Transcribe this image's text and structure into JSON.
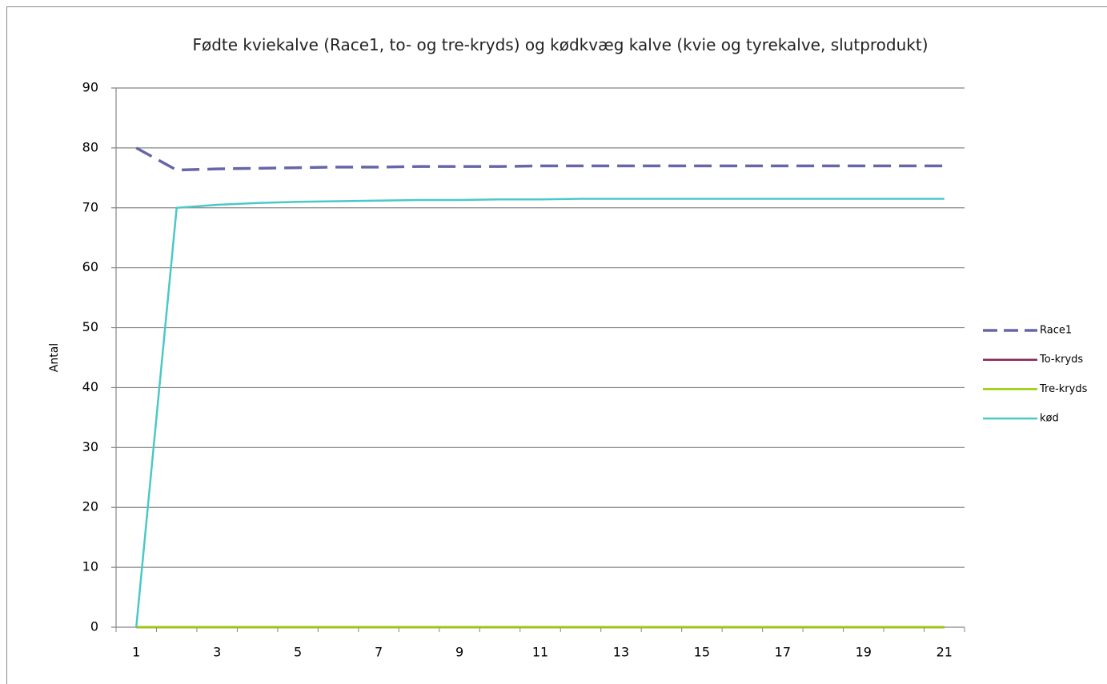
{
  "chart_data": {
    "type": "line",
    "title": "Fødte kviekalve (Race1, to- og tre-kryds) og kødkvæg kalve (kvie og tyrekalve, slutprodukt)",
    "y_label": "Antal",
    "categories": [
      1,
      null,
      3,
      null,
      5,
      null,
      7,
      null,
      9,
      null,
      11,
      null,
      13,
      null,
      15,
      null,
      17,
      null,
      19,
      null,
      21
    ],
    "series": [
      {
        "name": "Race1",
        "color": "#6666a8",
        "dashed": true,
        "values": [
          80,
          76.3,
          76.5,
          76.6,
          76.7,
          76.8,
          76.8,
          76.9,
          76.9,
          76.9,
          77,
          77,
          77,
          77,
          77,
          77,
          77,
          77,
          77,
          77,
          77
        ]
      },
      {
        "name": "To-kryds",
        "color": "#8b2252",
        "dashed": false,
        "values": [
          0,
          0,
          0,
          0,
          0,
          0,
          0,
          0,
          0,
          0,
          0,
          0,
          0,
          0,
          0,
          0,
          0,
          0,
          0,
          0,
          0
        ]
      },
      {
        "name": "Tre-kryds",
        "color": "#99cc00",
        "dashed": false,
        "values": [
          0,
          0,
          0,
          0,
          0,
          0,
          0,
          0,
          0,
          0,
          0,
          0,
          0,
          0,
          0,
          0,
          0,
          0,
          0,
          0,
          0
        ]
      },
      {
        "name": "kød",
        "color": "#4bc8c8",
        "dashed": false,
        "values": [
          0,
          70,
          70.5,
          70.8,
          71,
          71.1,
          71.2,
          71.3,
          71.3,
          71.4,
          71.4,
          71.5,
          71.5,
          71.5,
          71.5,
          71.5,
          71.5,
          71.5,
          71.5,
          71.5,
          71.5
        ]
      }
    ],
    "ylim": [
      0,
      90
    ],
    "yticks": [
      0,
      10,
      20,
      30,
      40,
      50,
      60,
      70,
      80,
      90
    ],
    "grid": true,
    "legend": "right"
  }
}
